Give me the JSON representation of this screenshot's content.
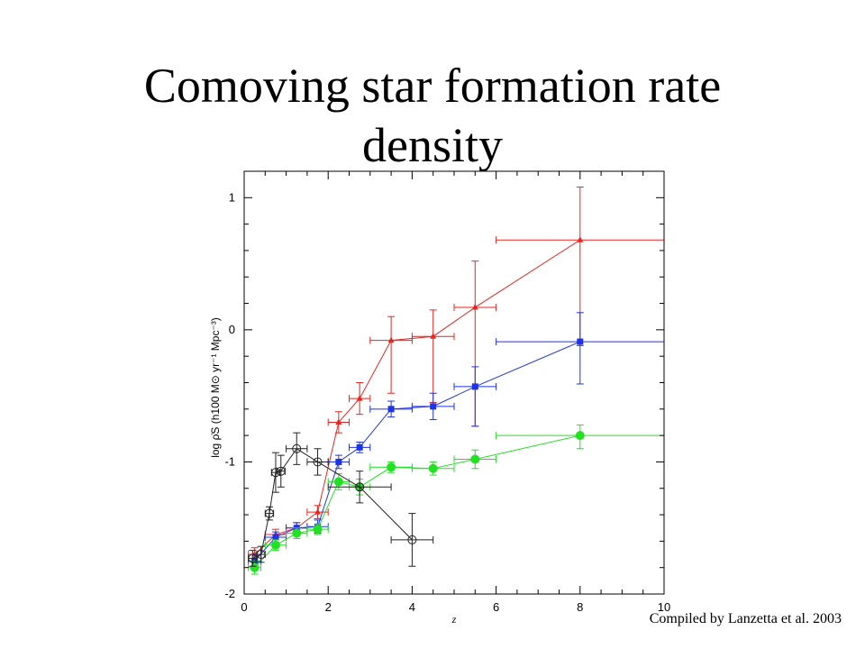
{
  "slide": {
    "title_line1": "Comoving star formation rate",
    "title_line2": "density",
    "credit": "Compiled by Lanzetta et al. 2003"
  },
  "chart_data": {
    "type": "scatter",
    "xlabel": "z",
    "ylabel": "log ρ̇S (h100 M⊙ yr⁻¹ Mpc⁻³)",
    "xlim": [
      0,
      10
    ],
    "ylim": [
      -2,
      1.2
    ],
    "xticks": [
      0,
      2,
      4,
      6,
      8,
      10
    ],
    "yticks": [
      -2,
      -1,
      0,
      1
    ],
    "grid": false,
    "series": [
      {
        "color": "#e8251f",
        "marker": "triangle",
        "points": [
          {
            "x": 0.25,
            "y": -1.7,
            "xerr": [
              0.15,
              0.15
            ],
            "yerr": [
              0.05,
              0.05
            ]
          },
          {
            "x": 0.75,
            "y": -1.55,
            "xerr": [
              0.25,
              0.25
            ],
            "yerr": [
              0.04,
              0.04
            ]
          },
          {
            "x": 1.25,
            "y": -1.5,
            "xerr": [
              0.25,
              0.25
            ],
            "yerr": [
              0.04,
              0.04
            ]
          },
          {
            "x": 1.75,
            "y": -1.38,
            "xerr": [
              0.25,
              0.25
            ],
            "yerr": [
              0.05,
              0.05
            ]
          },
          {
            "x": 2.25,
            "y": -0.7,
            "xerr": [
              0.25,
              0.25
            ],
            "yerr": [
              0.08,
              0.08
            ]
          },
          {
            "x": 2.75,
            "y": -0.52,
            "xerr": [
              0.25,
              0.25
            ],
            "yerr": [
              0.12,
              0.12
            ]
          },
          {
            "x": 3.5,
            "y": -0.08,
            "xerr": [
              0.5,
              0.5
            ],
            "yerr": [
              0.4,
              0.18
            ]
          },
          {
            "x": 4.5,
            "y": -0.05,
            "xerr": [
              0.5,
              0.5
            ],
            "yerr": [
              0.5,
              0.2
            ]
          },
          {
            "x": 5.5,
            "y": 0.17,
            "xerr": [
              0.5,
              0.5
            ],
            "yerr": [
              0.9,
              0.35
            ]
          },
          {
            "x": 8.0,
            "y": 0.68,
            "xerr": [
              2.0,
              2.0
            ],
            "yerr": [
              0.8,
              0.4
            ]
          }
        ]
      },
      {
        "color": "#1f33e6",
        "marker": "square",
        "points": [
          {
            "x": 0.25,
            "y": -1.75,
            "xerr": [
              0.15,
              0.15
            ],
            "yerr": [
              0.05,
              0.05
            ]
          },
          {
            "x": 0.75,
            "y": -1.57,
            "xerr": [
              0.25,
              0.25
            ],
            "yerr": [
              0.04,
              0.04
            ]
          },
          {
            "x": 1.25,
            "y": -1.5,
            "xerr": [
              0.25,
              0.25
            ],
            "yerr": [
              0.04,
              0.04
            ]
          },
          {
            "x": 1.75,
            "y": -1.49,
            "xerr": [
              0.25,
              0.25
            ],
            "yerr": [
              0.05,
              0.05
            ]
          },
          {
            "x": 2.25,
            "y": -1.0,
            "xerr": [
              0.25,
              0.25
            ],
            "yerr": [
              0.05,
              0.05
            ]
          },
          {
            "x": 2.75,
            "y": -0.89,
            "xerr": [
              0.25,
              0.25
            ],
            "yerr": [
              0.04,
              0.04
            ]
          },
          {
            "x": 3.5,
            "y": -0.6,
            "xerr": [
              0.5,
              0.5
            ],
            "yerr": [
              0.06,
              0.06
            ]
          },
          {
            "x": 4.5,
            "y": -0.58,
            "xerr": [
              0.5,
              0.5
            ],
            "yerr": [
              0.1,
              0.1
            ]
          },
          {
            "x": 5.5,
            "y": -0.43,
            "xerr": [
              0.5,
              0.5
            ],
            "yerr": [
              0.3,
              0.15
            ]
          },
          {
            "x": 8.0,
            "y": -0.09,
            "xerr": [
              2.0,
              2.0
            ],
            "yerr": [
              0.32,
              0.22
            ]
          }
        ]
      },
      {
        "color": "#22e022",
        "marker": "circle",
        "points": [
          {
            "x": 0.25,
            "y": -1.8,
            "xerr": [
              0.15,
              0.15
            ],
            "yerr": [
              0.05,
              0.05
            ]
          },
          {
            "x": 0.75,
            "y": -1.63,
            "xerr": [
              0.25,
              0.25
            ],
            "yerr": [
              0.04,
              0.04
            ]
          },
          {
            "x": 1.25,
            "y": -1.54,
            "xerr": [
              0.25,
              0.25
            ],
            "yerr": [
              0.04,
              0.04
            ]
          },
          {
            "x": 1.75,
            "y": -1.51,
            "xerr": [
              0.25,
              0.25
            ],
            "yerr": [
              0.04,
              0.04
            ]
          },
          {
            "x": 2.25,
            "y": -1.15,
            "xerr": [
              0.25,
              0.25
            ],
            "yerr": [
              0.06,
              0.06
            ]
          },
          {
            "x": 2.75,
            "y": -1.19,
            "xerr": [
              0.25,
              0.25
            ],
            "yerr": [
              0.06,
              0.06
            ]
          },
          {
            "x": 3.5,
            "y": -1.04,
            "xerr": [
              0.5,
              0.5
            ],
            "yerr": [
              0.04,
              0.04
            ]
          },
          {
            "x": 4.5,
            "y": -1.05,
            "xerr": [
              0.5,
              0.5
            ],
            "yerr": [
              0.05,
              0.05
            ]
          },
          {
            "x": 5.5,
            "y": -0.98,
            "xerr": [
              0.5,
              0.5
            ],
            "yerr": [
              0.07,
              0.07
            ]
          },
          {
            "x": 8.0,
            "y": -0.8,
            "xerr": [
              2.0,
              2.0
            ],
            "yerr": [
              0.1,
              0.08
            ]
          }
        ]
      },
      {
        "color": "#222222",
        "marker": "open-circle",
        "points": [
          {
            "x": 0.2,
            "y": -1.73,
            "xerr": [
              0.1,
              0.1
            ],
            "yerr": [
              0.06,
              0.06
            ]
          },
          {
            "x": 0.4,
            "y": -1.7,
            "xerr": [
              0.1,
              0.1
            ],
            "yerr": [
              0.06,
              0.06
            ]
          },
          {
            "x": 0.6,
            "y": -1.39,
            "xerr": [
              0.1,
              0.1
            ],
            "yerr": [
              0.05,
              0.05
            ]
          },
          {
            "x": 0.75,
            "y": -1.08,
            "xerr": [
              0.1,
              0.1
            ],
            "yerr": [
              0.15,
              0.15
            ]
          },
          {
            "x": 0.875,
            "y": -1.07,
            "xerr": [
              0.1,
              0.1
            ],
            "yerr": [
              0.12,
              0.12
            ]
          },
          {
            "x": 1.25,
            "y": -0.9,
            "xerr": [
              0.25,
              0.25
            ],
            "yerr": [
              0.12,
              0.12
            ]
          },
          {
            "x": 1.75,
            "y": -1.0,
            "xerr": [
              0.25,
              0.25
            ],
            "yerr": [
              0.1,
              0.1
            ]
          },
          {
            "x": 2.75,
            "y": -1.19,
            "xerr": [
              0.75,
              0.75
            ],
            "yerr": [
              0.12,
              0.12
            ]
          },
          {
            "x": 4.0,
            "y": -1.59,
            "xerr": [
              0.5,
              0.5
            ],
            "yerr": [
              0.2,
              0.2
            ]
          }
        ]
      }
    ]
  }
}
